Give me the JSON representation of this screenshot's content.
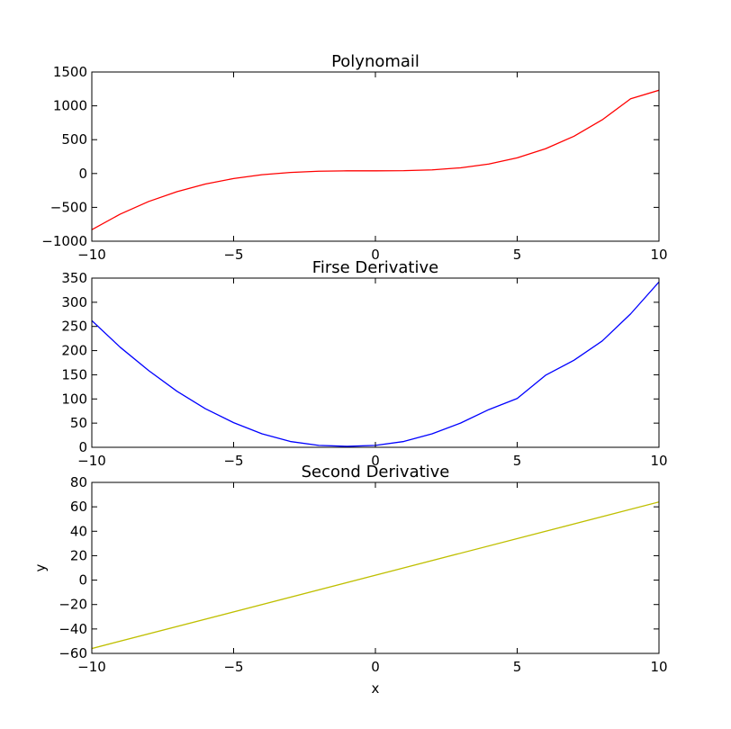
{
  "chart_data": [
    {
      "type": "line",
      "title": "Polynomail",
      "xlabel": "",
      "ylabel": "",
      "xlim": [
        -10,
        10
      ],
      "ylim": [
        -1000,
        1500
      ],
      "xticks": [
        -10,
        -5,
        0,
        5,
        10
      ],
      "yticks": [
        -1000,
        -500,
        0,
        500,
        1000,
        1500
      ],
      "grid": false,
      "series": [
        {
          "color": "#ff0000",
          "x": [
            -10,
            -9,
            -8,
            -7,
            -6,
            -5,
            -4,
            -3,
            -2,
            -1,
            0,
            1,
            2,
            3,
            4,
            5,
            6,
            7,
            8,
            9,
            10
          ],
          "y": [
            -830,
            -600,
            -414,
            -268,
            -156,
            -74,
            -18,
            16,
            34,
            40,
            40,
            42,
            54,
            84,
            140,
            232,
            366,
            550,
            794,
            1104,
            1230
          ]
        }
      ]
    },
    {
      "type": "line",
      "title": "Firse Derivative",
      "xlabel": "",
      "ylabel": "",
      "xlim": [
        -10,
        10
      ],
      "ylim": [
        0,
        350
      ],
      "xticks": [
        -10,
        -5,
        0,
        5,
        10
      ],
      "yticks": [
        0,
        50,
        100,
        150,
        200,
        250,
        300,
        350
      ],
      "grid": false,
      "series": [
        {
          "color": "#0000ff",
          "x": [
            -10,
            -9,
            -8,
            -7,
            -6,
            -5,
            -4,
            -3,
            -2,
            -1,
            0,
            1,
            2,
            3,
            4,
            5,
            6,
            7,
            8,
            9,
            10
          ],
          "y": [
            262,
            207,
            159,
            116,
            80,
            51,
            28,
            12,
            4,
            2,
            4,
            12,
            28,
            50,
            78,
            101,
            149,
            180,
            220,
            276,
            342
          ]
        }
      ]
    },
    {
      "type": "line",
      "title": "Second Derivative",
      "xlabel": "x",
      "ylabel": "y",
      "xlim": [
        -10,
        10
      ],
      "ylim": [
        -60,
        80
      ],
      "xticks": [
        -10,
        -5,
        0,
        5,
        10
      ],
      "yticks": [
        -60,
        -40,
        -20,
        0,
        20,
        40,
        60,
        80
      ],
      "grid": false,
      "series": [
        {
          "color": "#bfbf00",
          "x": [
            -10,
            10
          ],
          "y": [
            -56,
            64
          ]
        }
      ]
    }
  ]
}
